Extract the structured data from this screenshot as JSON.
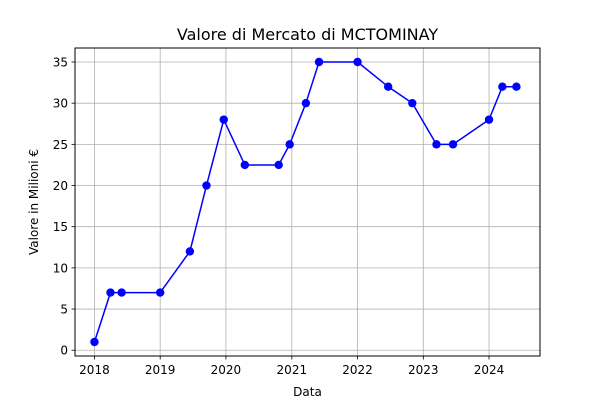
{
  "chart_data": {
    "type": "line",
    "title": "Valore di Mercato di MCTOMINAY",
    "xlabel": "Data",
    "ylabel": "Valore in Milioni €",
    "x_tick_labels": [
      "2018",
      "2019",
      "2020",
      "2021",
      "2022",
      "2023",
      "2024"
    ],
    "y_tick_labels": [
      "0",
      "5",
      "10",
      "15",
      "20",
      "25",
      "30",
      "35"
    ],
    "xlim": [
      "2017-09-15",
      "2024-10-10"
    ],
    "ylim": [
      -0.7,
      36.7
    ],
    "grid": true,
    "series": [
      {
        "color": "#0000ff",
        "marker": "circle",
        "x": [
          "2018-01-01",
          "2018-03-31",
          "2018-06-01",
          "2019-01-01",
          "2019-06-15",
          "2019-09-15",
          "2019-12-20",
          "2020-04-15",
          "2020-10-20",
          "2020-12-20",
          "2021-03-20",
          "2021-06-01",
          "2022-01-01",
          "2022-06-20",
          "2022-11-01",
          "2023-03-15",
          "2023-06-15",
          "2024-01-01",
          "2024-03-15",
          "2024-06-01"
        ],
        "y": [
          1,
          7,
          7,
          7,
          12,
          20,
          28,
          22.5,
          22.5,
          25,
          30,
          35,
          35,
          32,
          30,
          25,
          25,
          28,
          32,
          32
        ]
      }
    ]
  }
}
